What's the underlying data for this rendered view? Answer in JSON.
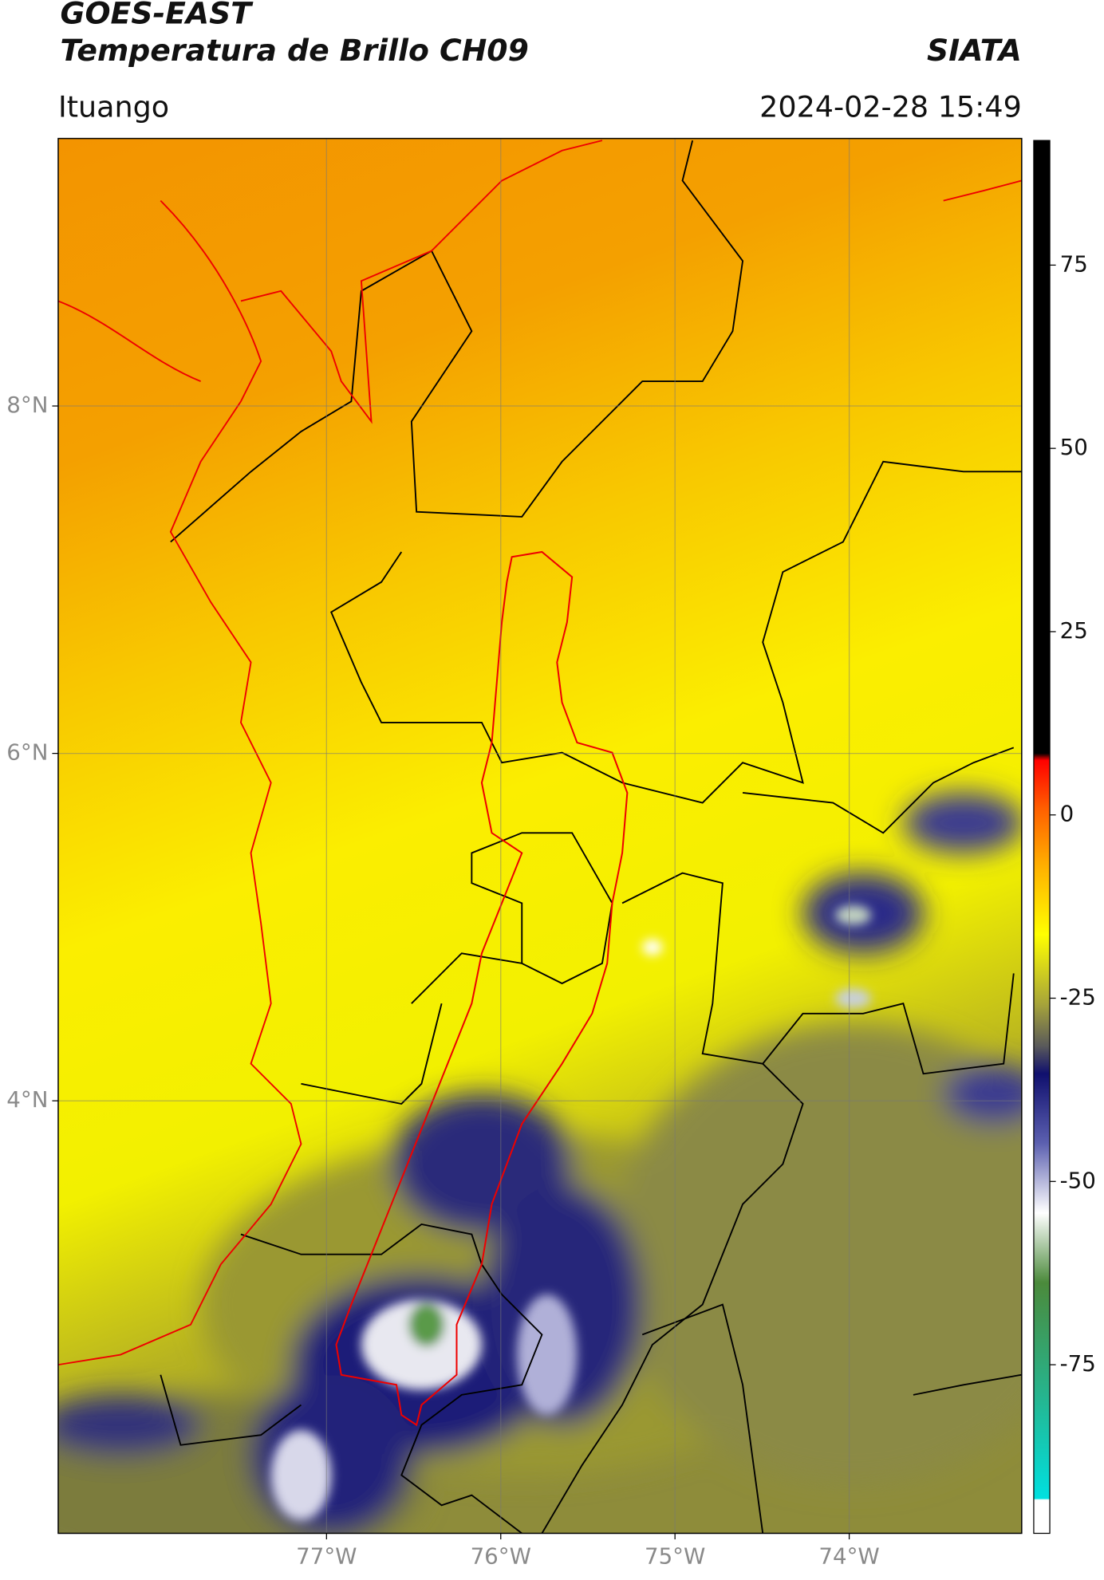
{
  "header": {
    "title": "GOES-EAST",
    "subtitle": "Temperatura de Brillo CH09",
    "source": "SIATA",
    "location": "Ituango",
    "datetime": "2024-02-28 15:49"
  },
  "map": {
    "lon_range": [
      -78.54,
      -73.01
    ],
    "lat_range": [
      1.51,
      9.54
    ],
    "lat_ticks": [
      {
        "value": 8,
        "label": "8°N"
      },
      {
        "value": 6,
        "label": "6°N"
      },
      {
        "value": 4,
        "label": "4°N"
      }
    ],
    "lon_ticks": [
      {
        "value": -77,
        "label": "77°W"
      },
      {
        "value": -76,
        "label": "76°W"
      },
      {
        "value": -75,
        "label": "75°W"
      },
      {
        "value": -74,
        "label": "74°W"
      }
    ]
  },
  "colorbar": {
    "range": [
      -98,
      92
    ],
    "ticks": [
      75,
      50,
      25,
      0,
      -25,
      -50,
      -75
    ]
  }
}
